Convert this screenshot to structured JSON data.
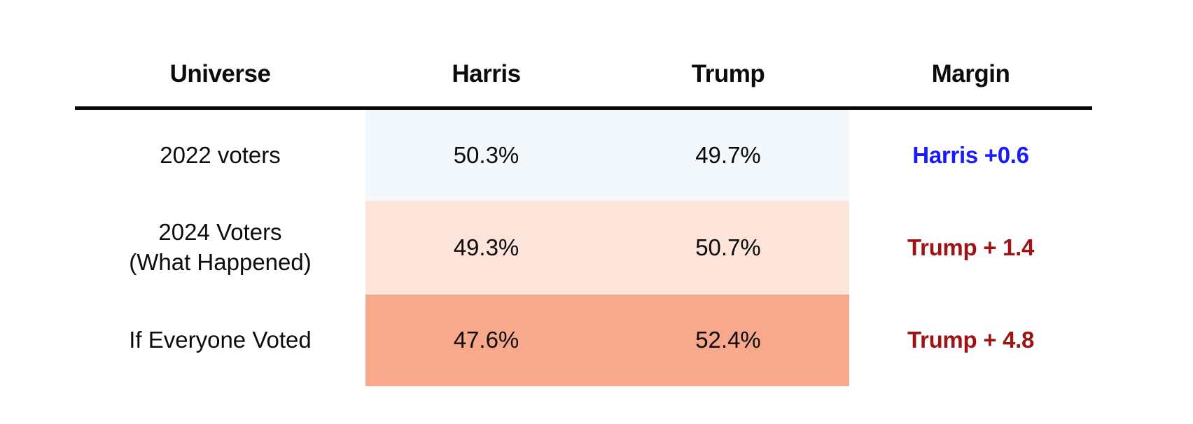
{
  "table": {
    "headers": [
      {
        "label": "Universe"
      },
      {
        "label": "Harris"
      },
      {
        "label": "Trump"
      },
      {
        "label": "Margin"
      }
    ],
    "rows": [
      {
        "universe": "2022 voters",
        "harris": "50.3%",
        "trump": "49.7%",
        "margin": "Harris +0.6",
        "band_color": "#f2f8fb",
        "margin_color": "#1a1aff"
      },
      {
        "universe": "2024 Voters\n(What Happened)",
        "harris": "49.3%",
        "trump": "50.7%",
        "margin": "Trump + 1.4",
        "band_color": "#fde4da",
        "margin_color": "#9e1414"
      },
      {
        "universe": "If Everyone Voted",
        "harris": "47.6%",
        "trump": "52.4%",
        "margin": "Trump + 4.8",
        "band_color": "#f8a98b",
        "margin_color": "#9e1414"
      }
    ],
    "colors": {
      "header_rule": "#0a0a0a",
      "text": "#0c0c0c",
      "harris_margin_blue": "#1a1aff",
      "trump_margin_red": "#9e1414",
      "row1_band": "#f2f8fb",
      "row2_band": "#fde4da",
      "row3_band": "#f8a98b"
    }
  },
  "chart_data": {
    "type": "table",
    "title": "",
    "columns": [
      "Universe",
      "Harris",
      "Trump",
      "Margin"
    ],
    "rows": [
      {
        "universe": "2022 voters",
        "harris_pct": 50.3,
        "trump_pct": 49.7,
        "margin": "Harris +0.6",
        "margin_value": 0.6,
        "margin_winner": "Harris"
      },
      {
        "universe": "2024 Voters (What Happened)",
        "harris_pct": 49.3,
        "trump_pct": 50.7,
        "margin": "Trump + 1.4",
        "margin_value": 1.4,
        "margin_winner": "Trump"
      },
      {
        "universe": "If Everyone Voted",
        "harris_pct": 47.6,
        "trump_pct": 52.4,
        "margin": "Trump + 4.8",
        "margin_value": 4.8,
        "margin_winner": "Trump"
      }
    ],
    "layout_hints": {
      "shaded_band_columns": [
        "Harris",
        "Trump"
      ],
      "band_color_encodes": "margin shift toward Trump",
      "grid": false
    }
  }
}
